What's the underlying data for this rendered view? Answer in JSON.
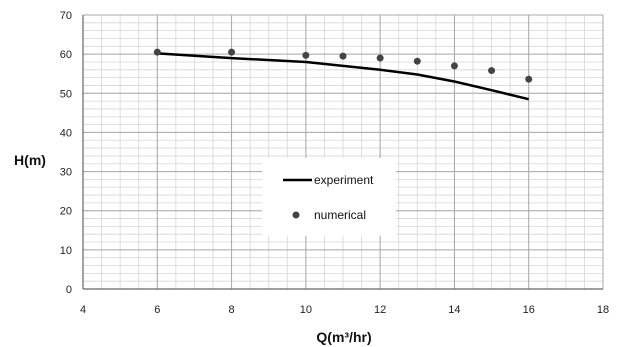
{
  "chart_data": {
    "type": "line",
    "title": "",
    "xlabel": "Q(m³/hr)",
    "ylabel": "H(m)",
    "xlim": [
      4,
      18
    ],
    "ylim": [
      0,
      70
    ],
    "x_ticks": [
      4,
      6,
      8,
      10,
      12,
      14,
      16,
      18
    ],
    "y_ticks": [
      0,
      10,
      20,
      30,
      40,
      50,
      60,
      70
    ],
    "minor_grid": {
      "x_step": 0.5,
      "y_step": 2
    },
    "grid": true,
    "legend_position": "center",
    "series": [
      {
        "name": "experiment",
        "kind": "line",
        "color": "#000000",
        "x": [
          6,
          8,
          10,
          11,
          12,
          13,
          14,
          15,
          16
        ],
        "y": [
          60.2,
          59.0,
          58.0,
          57.0,
          56.0,
          54.8,
          53.0,
          50.8,
          48.5
        ]
      },
      {
        "name": "numerical",
        "kind": "scatter",
        "color": "#444444",
        "x": [
          6,
          8,
          10,
          11,
          12,
          13,
          14,
          15,
          16
        ],
        "y": [
          60.5,
          60.5,
          59.7,
          59.5,
          59.0,
          58.2,
          57.0,
          55.8,
          53.6
        ]
      }
    ]
  }
}
